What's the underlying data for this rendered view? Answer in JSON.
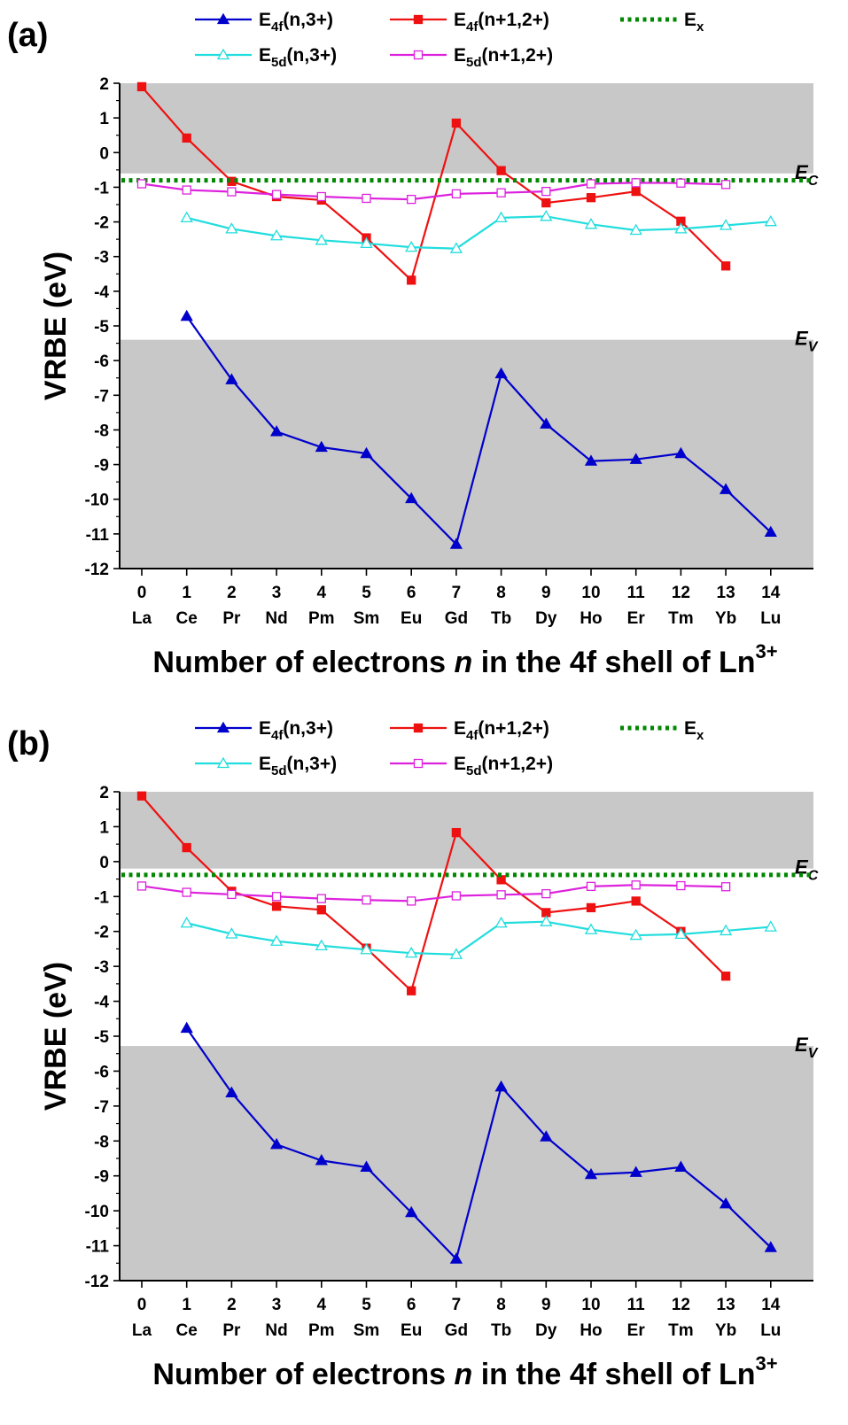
{
  "figure": {
    "panels": [
      "(a)",
      "(b)"
    ]
  },
  "chart_data": [
    {
      "type": "line",
      "panel_label": "(a)",
      "x": [
        0,
        1,
        2,
        3,
        4,
        5,
        6,
        7,
        8,
        9,
        10,
        11,
        12,
        13,
        14
      ],
      "xtick_labels": [
        "0",
        "1",
        "2",
        "3",
        "4",
        "5",
        "6",
        "7",
        "8",
        "9",
        "10",
        "11",
        "12",
        "13",
        "14"
      ],
      "xtick_sublabels": [
        "La",
        "Ce",
        "Pr",
        "Nd",
        "Pm",
        "Sm",
        "Eu",
        "Gd",
        "Tb",
        "Dy",
        "Ho",
        "Er",
        "Tm",
        "Yb",
        "Lu"
      ],
      "xlabel": "Number of electrons n in the 4f shell of Ln3+",
      "ylabel": "VRBE (eV)",
      "ylim": [
        -12,
        2
      ],
      "yticks": [
        -12,
        -11,
        -10,
        -9,
        -8,
        -7,
        -6,
        -5,
        -4,
        -3,
        -2,
        -1,
        0,
        1,
        2
      ],
      "legend_position": "top",
      "conduction_band_bottom": -0.6,
      "valence_band_top": -5.4,
      "band_labels": {
        "ec": "E",
        "ec_sub": "C",
        "ev": "E",
        "ev_sub": "V"
      },
      "series": [
        {
          "name": "E4f(n,3+)",
          "name_main": "E",
          "name_sub": "4f",
          "name_rest": "(n,3+)",
          "color": "#0000cc",
          "marker": "triangle-filled",
          "x": [
            1,
            2,
            3,
            4,
            5,
            6,
            7,
            8,
            9,
            10,
            11,
            12,
            13,
            14
          ],
          "values": [
            -4.72,
            -6.55,
            -8.05,
            -8.5,
            -8.68,
            -9.98,
            -11.3,
            -6.38,
            -7.83,
            -8.9,
            -8.85,
            -8.68,
            -9.72,
            -10.95
          ]
        },
        {
          "name": "E4f(n+1,2+)",
          "name_main": "E",
          "name_sub": "4f",
          "name_rest": "(n+1,2+)",
          "color": "#ee1111",
          "marker": "square-filled",
          "x": [
            0,
            1,
            2,
            3,
            4,
            5,
            6,
            7,
            8,
            9,
            10,
            11,
            12,
            13
          ],
          "values": [
            1.9,
            0.42,
            -0.83,
            -1.27,
            -1.37,
            -2.46,
            -3.68,
            0.85,
            -0.52,
            -1.45,
            -1.3,
            -1.12,
            -1.98,
            -3.27
          ]
        },
        {
          "name": "Ex",
          "name_main": "E",
          "name_sub": "x",
          "name_rest": "",
          "color": "#008800",
          "marker": "dotted-line",
          "x": [
            0,
            14
          ],
          "values": [
            -0.8,
            -0.8
          ]
        },
        {
          "name": "E5d(n,3+)",
          "name_main": "E",
          "name_sub": "5d",
          "name_rest": "(n,3+)",
          "color": "#22dddd",
          "marker": "triangle-open",
          "x": [
            1,
            2,
            3,
            4,
            5,
            6,
            7,
            8,
            9,
            10,
            11,
            12,
            13,
            14
          ],
          "values": [
            -1.88,
            -2.2,
            -2.4,
            -2.53,
            -2.62,
            -2.73,
            -2.77,
            -1.88,
            -1.84,
            -2.07,
            -2.24,
            -2.2,
            -2.1,
            -1.99
          ]
        },
        {
          "name": "E5d(n+1,2+)",
          "name_main": "E",
          "name_sub": "5d",
          "name_rest": "(n+1,2+)",
          "color": "#dd22dd",
          "marker": "square-open",
          "x": [
            0,
            1,
            2,
            3,
            4,
            5,
            6,
            7,
            8,
            9,
            10,
            11,
            12,
            13
          ],
          "values": [
            -0.9,
            -1.08,
            -1.13,
            -1.21,
            -1.27,
            -1.32,
            -1.35,
            -1.19,
            -1.16,
            -1.12,
            -0.9,
            -0.87,
            -0.88,
            -0.92
          ]
        }
      ]
    },
    {
      "type": "line",
      "panel_label": "(b)",
      "x": [
        0,
        1,
        2,
        3,
        4,
        5,
        6,
        7,
        8,
        9,
        10,
        11,
        12,
        13,
        14
      ],
      "xtick_labels": [
        "0",
        "1",
        "2",
        "3",
        "4",
        "5",
        "6",
        "7",
        "8",
        "9",
        "10",
        "11",
        "12",
        "13",
        "14"
      ],
      "xtick_sublabels": [
        "La",
        "Ce",
        "Pr",
        "Nd",
        "Pm",
        "Sm",
        "Eu",
        "Gd",
        "Tb",
        "Dy",
        "Ho",
        "Er",
        "Tm",
        "Yb",
        "Lu"
      ],
      "xlabel": "Number of electrons n in the 4f shell of Ln3+",
      "ylabel": "VRBE (eV)",
      "ylim": [
        -12,
        2
      ],
      "yticks": [
        -12,
        -11,
        -10,
        -9,
        -8,
        -7,
        -6,
        -5,
        -4,
        -3,
        -2,
        -1,
        0,
        1,
        2
      ],
      "legend_position": "top",
      "conduction_band_bottom": -0.2,
      "valence_band_top": -5.28,
      "band_labels": {
        "ec": "E",
        "ec_sub": "C",
        "ev": "E",
        "ev_sub": "V"
      },
      "series": [
        {
          "name": "E4f(n,3+)",
          "name_main": "E",
          "name_sub": "4f",
          "name_rest": "(n,3+)",
          "color": "#0000cc",
          "marker": "triangle-filled",
          "x": [
            1,
            2,
            3,
            4,
            5,
            6,
            7,
            8,
            9,
            10,
            11,
            12,
            13,
            14
          ],
          "values": [
            -4.77,
            -6.62,
            -8.1,
            -8.56,
            -8.75,
            -10.05,
            -11.38,
            -6.45,
            -7.88,
            -8.96,
            -8.9,
            -8.75,
            -9.8,
            -11.05
          ]
        },
        {
          "name": "E4f(n+1,2+)",
          "name_main": "E",
          "name_sub": "4f",
          "name_rest": "(n+1,2+)",
          "color": "#ee1111",
          "marker": "square-filled",
          "x": [
            0,
            1,
            2,
            3,
            4,
            5,
            6,
            7,
            8,
            9,
            10,
            11,
            12,
            13
          ],
          "values": [
            1.88,
            0.4,
            -0.85,
            -1.28,
            -1.38,
            -2.48,
            -3.7,
            0.83,
            -0.52,
            -1.46,
            -1.32,
            -1.13,
            -2.0,
            -3.28
          ]
        },
        {
          "name": "Ex",
          "name_main": "E",
          "name_sub": "x",
          "name_rest": "",
          "color": "#008800",
          "marker": "dotted-line",
          "x": [
            0,
            14
          ],
          "values": [
            -0.38,
            -0.38
          ]
        },
        {
          "name": "E5d(n,3+)",
          "name_main": "E",
          "name_sub": "5d",
          "name_rest": "(n,3+)",
          "color": "#22dddd",
          "marker": "triangle-open",
          "x": [
            1,
            2,
            3,
            4,
            5,
            6,
            7,
            8,
            9,
            10,
            11,
            12,
            13,
            14
          ],
          "values": [
            -1.76,
            -2.07,
            -2.28,
            -2.41,
            -2.52,
            -2.62,
            -2.66,
            -1.76,
            -1.72,
            -1.95,
            -2.11,
            -2.08,
            -1.98,
            -1.87
          ]
        },
        {
          "name": "E5d(n+1,2+)",
          "name_main": "E",
          "name_sub": "5d",
          "name_rest": "(n+1,2+)",
          "color": "#dd22dd",
          "marker": "square-open",
          "x": [
            0,
            1,
            2,
            3,
            4,
            5,
            6,
            7,
            8,
            9,
            10,
            11,
            12,
            13
          ],
          "values": [
            -0.7,
            -0.88,
            -0.94,
            -1.0,
            -1.06,
            -1.1,
            -1.13,
            -0.98,
            -0.95,
            -0.92,
            -0.71,
            -0.67,
            -0.69,
            -0.72
          ]
        }
      ]
    }
  ]
}
